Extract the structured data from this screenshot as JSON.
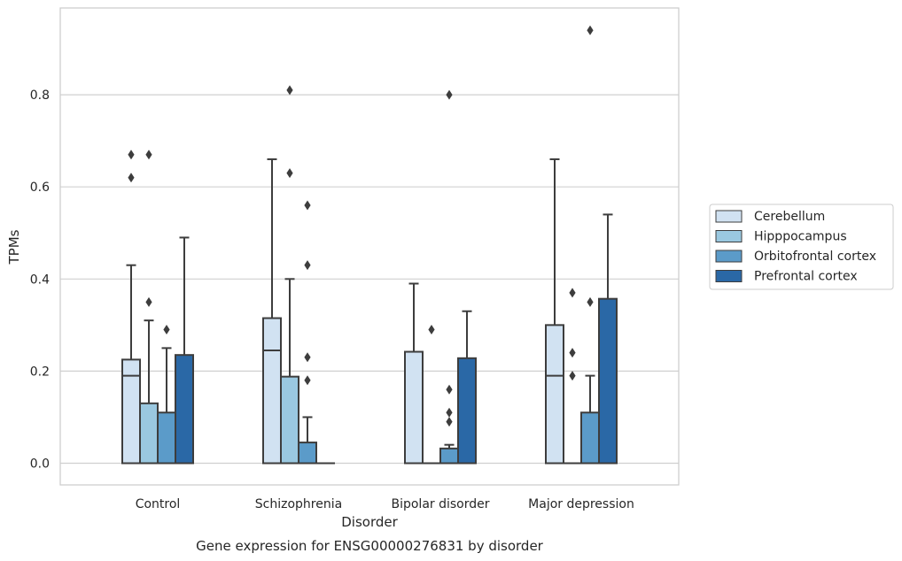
{
  "chart_data": {
    "type": "boxplot",
    "title": "",
    "caption": "Gene expression for ENSG00000276831 by disorder",
    "xlabel": "Disorder",
    "ylabel": "TPMs",
    "ylim": [
      -0.045,
      0.99
    ],
    "yticks": [
      "0.0",
      "0.2",
      "0.4",
      "0.6",
      "0.8"
    ],
    "ytick_values": [
      0.0,
      0.2,
      0.4,
      0.6,
      0.8
    ],
    "grid": "horizontal",
    "legend_position": "right",
    "categories": [
      "Control",
      "Schizophrenia",
      "Bipolar disorder",
      "Major depression"
    ],
    "series": [
      {
        "name": "Cerebellum",
        "color": "#d1e2f2",
        "boxes": [
          {
            "q1": 0.0,
            "median": 0.19,
            "q3": 0.225,
            "whisker_low": 0.0,
            "whisker_high": 0.43,
            "outliers": [
              0.62,
              0.67
            ]
          },
          {
            "q1": 0.0,
            "median": 0.245,
            "q3": 0.315,
            "whisker_low": 0.0,
            "whisker_high": 0.66,
            "outliers": []
          },
          {
            "q1": 0.0,
            "median": 0.0,
            "q3": 0.242,
            "whisker_low": 0.0,
            "whisker_high": 0.39,
            "outliers": []
          },
          {
            "q1": 0.0,
            "median": 0.19,
            "q3": 0.3,
            "whisker_low": 0.0,
            "whisker_high": 0.66,
            "outliers": []
          }
        ]
      },
      {
        "name": "Hipppocampus",
        "color": "#9ac8e0",
        "boxes": [
          {
            "q1": 0.0,
            "median": 0.0,
            "q3": 0.13,
            "whisker_low": 0.0,
            "whisker_high": 0.31,
            "outliers": [
              0.35,
              0.67
            ]
          },
          {
            "q1": 0.0,
            "median": 0.0,
            "q3": 0.188,
            "whisker_low": 0.0,
            "whisker_high": 0.4,
            "outliers": [
              0.63,
              0.81
            ]
          },
          {
            "q1": 0.0,
            "median": 0.0,
            "q3": 0.0,
            "whisker_low": 0.0,
            "whisker_high": 0.0,
            "outliers": [
              0.29
            ]
          },
          {
            "q1": 0.0,
            "median": 0.0,
            "q3": 0.0,
            "whisker_low": 0.0,
            "whisker_high": 0.0,
            "outliers": [
              0.19,
              0.24,
              0.37
            ]
          }
        ]
      },
      {
        "name": "Orbitofrontal cortex",
        "color": "#5b9bc9",
        "boxes": [
          {
            "q1": 0.0,
            "median": 0.0,
            "q3": 0.11,
            "whisker_low": 0.0,
            "whisker_high": 0.25,
            "outliers": [
              0.29
            ]
          },
          {
            "q1": 0.0,
            "median": 0.0,
            "q3": 0.045,
            "whisker_low": 0.0,
            "whisker_high": 0.1,
            "outliers": [
              0.18,
              0.23,
              0.43,
              0.56
            ]
          },
          {
            "q1": 0.0,
            "median": 0.0,
            "q3": 0.032,
            "whisker_low": 0.0,
            "whisker_high": 0.04,
            "outliers": [
              0.09,
              0.11,
              0.16,
              0.8
            ]
          },
          {
            "q1": 0.0,
            "median": 0.0,
            "q3": 0.11,
            "whisker_low": 0.0,
            "whisker_high": 0.19,
            "outliers": [
              0.35,
              0.94
            ]
          }
        ]
      },
      {
        "name": "Prefrontal cortex",
        "color": "#2a68a6",
        "boxes": [
          {
            "q1": 0.0,
            "median": 0.0,
            "q3": 0.235,
            "whisker_low": 0.0,
            "whisker_high": 0.49,
            "outliers": []
          },
          {
            "q1": 0.0,
            "median": 0.0,
            "q3": 0.0,
            "whisker_low": 0.0,
            "whisker_high": 0.0,
            "outliers": []
          },
          {
            "q1": 0.0,
            "median": 0.0,
            "q3": 0.228,
            "whisker_low": 0.0,
            "whisker_high": 0.33,
            "outliers": []
          },
          {
            "q1": 0.0,
            "median": 0.0,
            "q3": 0.357,
            "whisker_low": 0.0,
            "whisker_high": 0.54,
            "outliers": []
          }
        ]
      }
    ]
  }
}
